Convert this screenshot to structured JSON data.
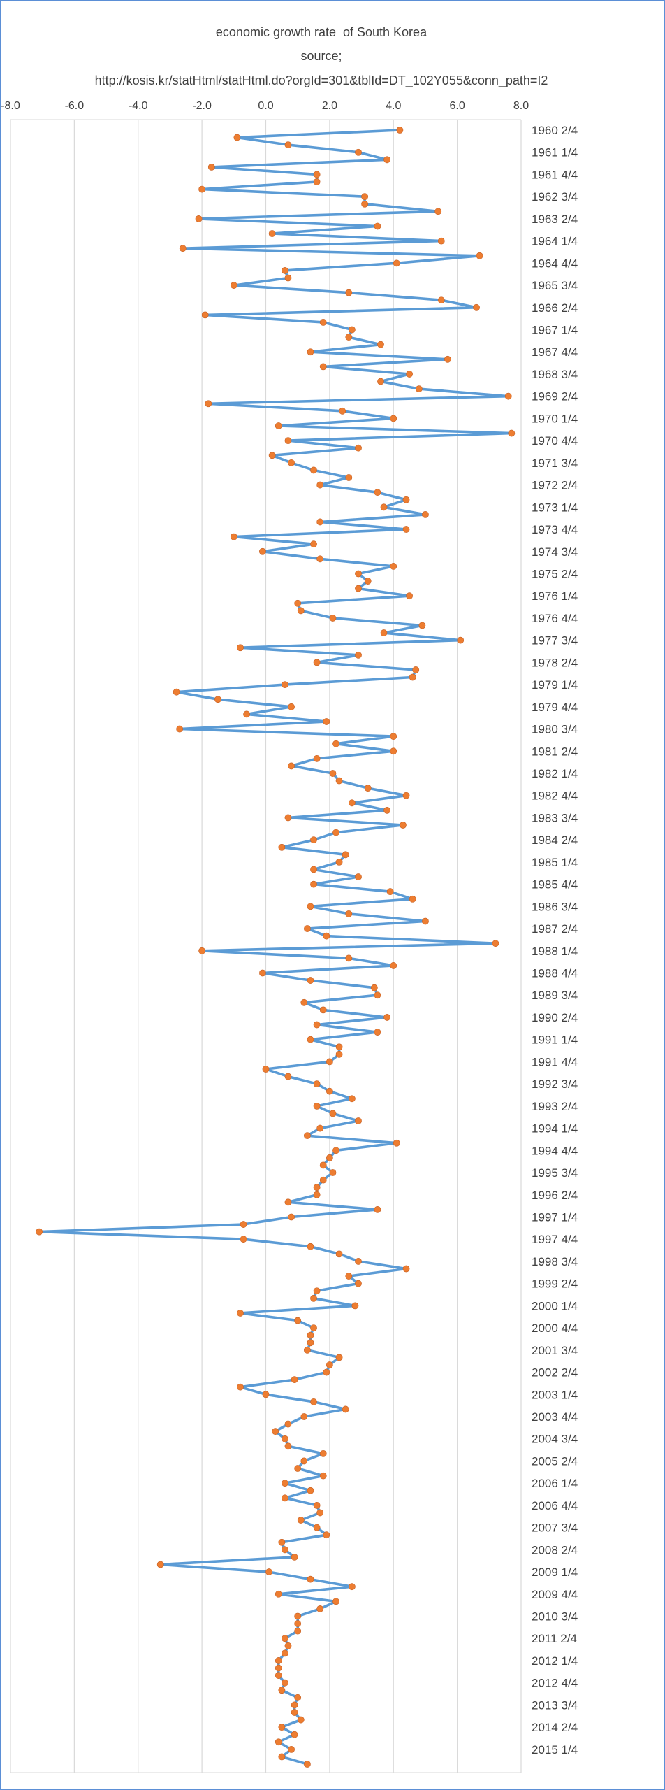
{
  "chart_data": {
    "type": "line",
    "title": "economic growth rate  of South Korea",
    "subtitle": "source;",
    "source_url": "http://kosis.kr/statHtml/statHtml.do?orgId=301&tblId=DT_102Y055&conn_path=I2",
    "orientation": "vertical-category-axis",
    "xlim": [
      -8.0,
      8.0
    ],
    "xticks": [
      "-8.0",
      "-6.0",
      "-4.0",
      "-2.0",
      "0.0",
      "2.0",
      "4.0",
      "6.0",
      "8.0"
    ],
    "grid": true,
    "line_color": "#5b9bd5",
    "marker_color": "#ed7d31",
    "start_quarter": "1960 2/4",
    "end_quarter": "2015 2/4",
    "category_labels": [
      "1960 2/4",
      "1961 1/4",
      "1961 4/4",
      "1962 3/4",
      "1963 2/4",
      "1964 1/4",
      "1964 4/4",
      "1965 3/4",
      "1966 2/4",
      "1967 1/4",
      "1967 4/4",
      "1968 3/4",
      "1969 2/4",
      "1970 1/4",
      "1970 4/4",
      "1971 3/4",
      "1972 2/4",
      "1973 1/4",
      "1973 4/4",
      "1974 3/4",
      "1975 2/4",
      "1976 1/4",
      "1976 4/4",
      "1977 3/4",
      "1978 2/4",
      "1979 1/4",
      "1979 4/4",
      "1980 3/4",
      "1981 2/4",
      "1982 1/4",
      "1982 4/4",
      "1983 3/4",
      "1984 2/4",
      "1985 1/4",
      "1985 4/4",
      "1986 3/4",
      "1987 2/4",
      "1988 1/4",
      "1988 4/4",
      "1989 3/4",
      "1990 2/4",
      "1991 1/4",
      "1991 4/4",
      "1992 3/4",
      "1993 2/4",
      "1994 1/4",
      "1994 4/4",
      "1995 3/4",
      "1996 2/4",
      "1997 1/4",
      "1997 4/4",
      "1998 3/4",
      "1999 2/4",
      "2000 1/4",
      "2000 4/4",
      "2001 3/4",
      "2002 2/4",
      "2003 1/4",
      "2003 4/4",
      "2004 3/4",
      "2005 2/4",
      "2006 1/4",
      "2006 4/4",
      "2007 3/4",
      "2008 2/4",
      "2009 1/4",
      "2009 4/4",
      "2010 3/4",
      "2011 2/4",
      "2012 1/4",
      "2012 4/4",
      "2013 3/4",
      "2014 2/4",
      "2015 1/4"
    ],
    "values": [
      4.2,
      -0.9,
      0.7,
      2.9,
      3.8,
      -1.7,
      1.6,
      1.6,
      -2.0,
      3.1,
      3.1,
      5.4,
      -2.1,
      3.5,
      0.2,
      5.5,
      -2.6,
      6.7,
      4.1,
      0.6,
      0.7,
      -1.0,
      2.6,
      5.5,
      6.6,
      -1.9,
      1.8,
      2.7,
      2.6,
      3.6,
      1.4,
      5.7,
      1.8,
      4.5,
      3.6,
      4.8,
      7.6,
      -1.8,
      2.4,
      4.0,
      0.4,
      7.7,
      0.7,
      2.9,
      0.2,
      0.8,
      1.5,
      2.6,
      1.7,
      3.5,
      4.4,
      3.7,
      5.0,
      1.7,
      4.4,
      -1.0,
      1.5,
      -0.1,
      1.7,
      4.0,
      2.9,
      3.2,
      2.9,
      4.5,
      1.0,
      1.1,
      2.1,
      4.9,
      3.7,
      6.1,
      -0.8,
      2.9,
      1.6,
      4.7,
      4.6,
      0.6,
      -2.8,
      -1.5,
      0.8,
      -0.6,
      1.9,
      -2.7,
      4.0,
      2.2,
      4.0,
      1.6,
      0.8,
      2.1,
      2.3,
      3.2,
      4.4,
      2.7,
      3.8,
      0.7,
      4.3,
      2.2,
      1.5,
      0.5,
      2.5,
      2.3,
      1.5,
      2.9,
      1.5,
      3.9,
      4.6,
      1.4,
      2.6,
      5.0,
      1.3,
      1.9,
      7.2,
      -2.0,
      2.6,
      4.0,
      -0.1,
      1.4,
      3.4,
      3.5,
      1.2,
      1.8,
      3.8,
      1.6,
      3.5,
      1.4,
      2.3,
      2.3,
      2.0,
      0.0,
      0.7,
      1.6,
      2.0,
      2.7,
      1.6,
      2.1,
      2.9,
      1.7,
      1.3,
      4.1,
      2.2,
      2.0,
      1.8,
      2.1,
      1.8,
      1.6,
      1.6,
      0.7,
      3.5,
      0.8,
      -0.7,
      -7.1,
      -0.7,
      1.4,
      2.3,
      2.9,
      4.4,
      2.6,
      2.9,
      1.6,
      1.5,
      2.8,
      -0.8,
      1.0,
      1.5,
      1.4,
      1.4,
      1.3,
      2.3,
      2.0,
      1.9,
      0.9,
      -0.8,
      0.0,
      1.5,
      2.5,
      1.2,
      0.7,
      0.3,
      0.6,
      0.7,
      1.8,
      1.2,
      1.0,
      1.8,
      0.6,
      1.4,
      0.6,
      1.6,
      1.7,
      1.1,
      1.6,
      1.9,
      0.5,
      0.6,
      0.9,
      -3.3,
      0.1,
      1.4,
      2.7,
      0.4,
      2.2,
      1.7,
      1.0,
      1.0,
      1.0,
      0.6,
      0.7,
      0.6,
      0.4,
      0.4,
      0.4,
      0.6,
      0.5,
      1.0,
      0.9,
      0.9,
      1.1,
      0.5,
      0.9,
      0.4,
      0.8,
      0.5,
      1.3
    ]
  }
}
